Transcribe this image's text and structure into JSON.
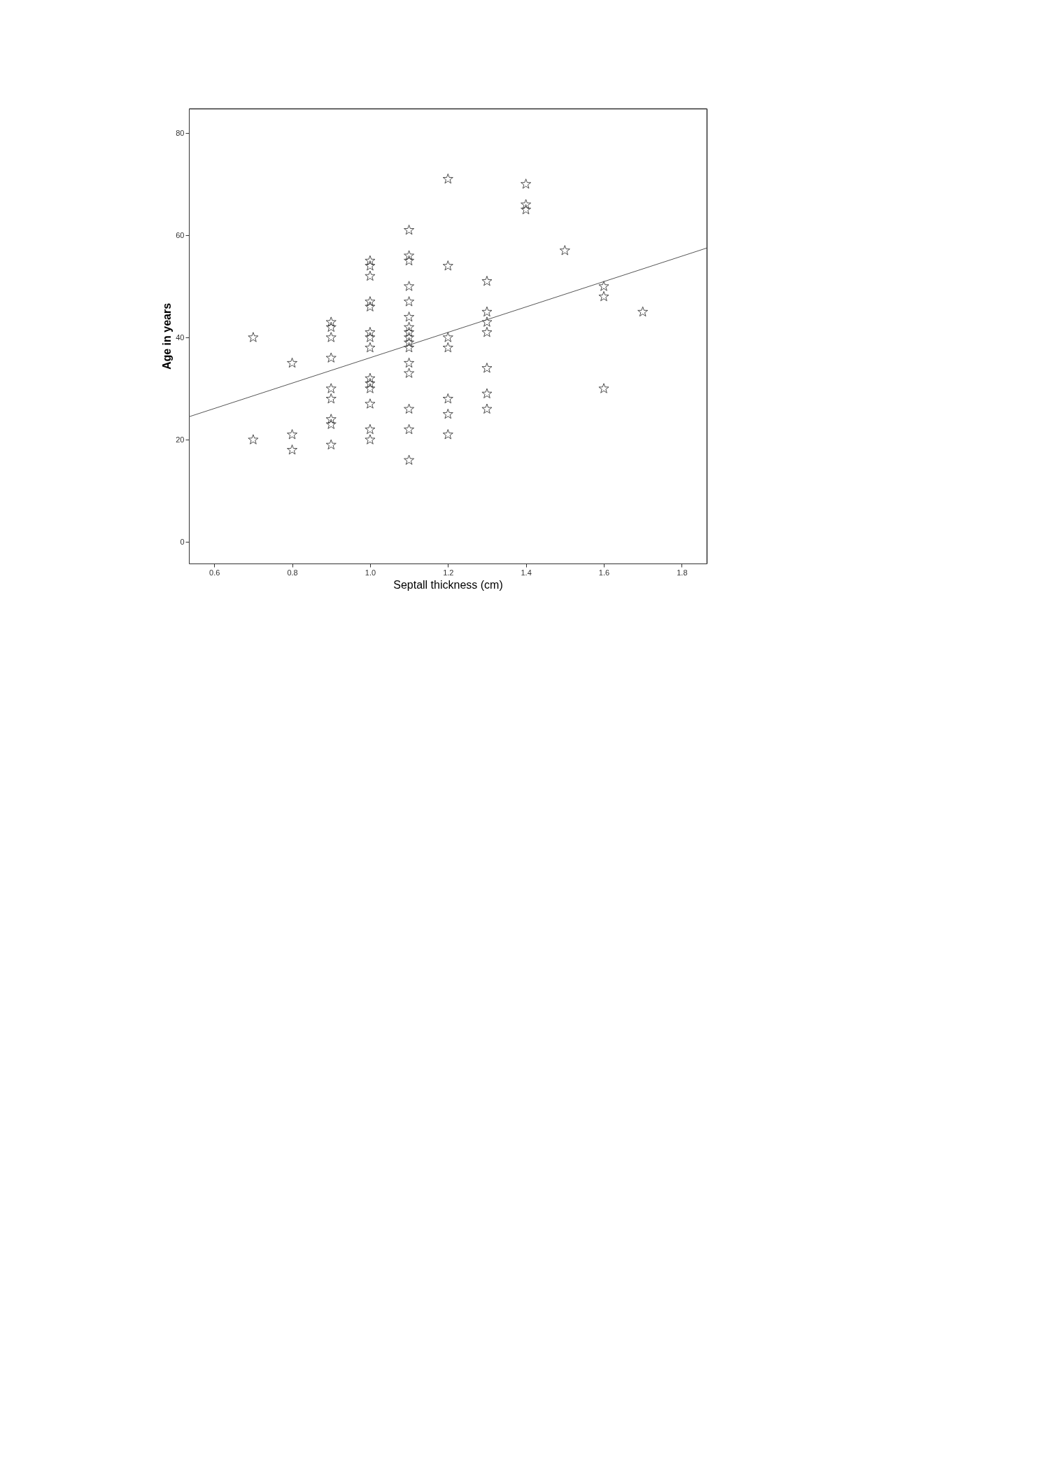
{
  "chart_data": {
    "type": "scatter",
    "xlabel": "Septall thickness (cm)",
    "ylabel": "Age in years",
    "xlim": [
      0.535,
      1.864
    ],
    "ylim": [
      -4.2,
      84.8
    ],
    "xticks": [
      0.6,
      0.8,
      {
        "value": 1.0,
        "label": "1.0"
      },
      1.2,
      1.4,
      1.6,
      1.8
    ],
    "yticks": [
      0,
      20,
      40,
      60,
      80
    ],
    "grid": false,
    "marker": "star",
    "series": [
      {
        "color": "#000000",
        "x": [
          0.7,
          0.7,
          0.8,
          0.8,
          0.8,
          0.9,
          0.9,
          0.9,
          0.9,
          0.9,
          0.9,
          0.9,
          0.9,
          0.9,
          1.0,
          1.0,
          1.0,
          1.0,
          1.0,
          1.0,
          1.0,
          1.0,
          1.0,
          1.0,
          1.0,
          1.0,
          1.0,
          1.0,
          1.1,
          1.1,
          1.1,
          1.1,
          1.1,
          1.1,
          1.1,
          1.1,
          1.1,
          1.1,
          1.1,
          1.1,
          1.1,
          1.1,
          1.1,
          1.1,
          1.2,
          1.2,
          1.2,
          1.2,
          1.2,
          1.2,
          1.2,
          1.3,
          1.3,
          1.3,
          1.3,
          1.3,
          1.3,
          1.3,
          1.4,
          1.4,
          1.4,
          1.5,
          1.6,
          1.6,
          1.6,
          1.7
        ],
        "values": [
          40,
          20,
          35,
          21,
          18,
          43,
          42,
          40,
          36,
          30,
          28,
          24,
          23,
          19,
          55,
          54,
          52,
          47,
          46,
          41,
          40,
          38,
          32,
          31,
          30,
          27,
          22,
          20,
          61,
          56,
          55,
          50,
          47,
          44,
          42,
          41,
          40,
          39,
          38,
          35,
          33,
          26,
          22,
          16,
          71,
          54,
          40,
          38,
          28,
          25,
          21,
          51,
          45,
          43,
          41,
          34,
          29,
          26,
          70,
          66,
          65,
          57,
          50,
          48,
          30,
          45
        ]
      },
      {
        "type": "line",
        "color": "#555555",
        "line_style": "solid",
        "marker": "none",
        "x": [
          0.535,
          1.864
        ],
        "values": [
          24.5,
          57.5
        ]
      }
    ]
  }
}
